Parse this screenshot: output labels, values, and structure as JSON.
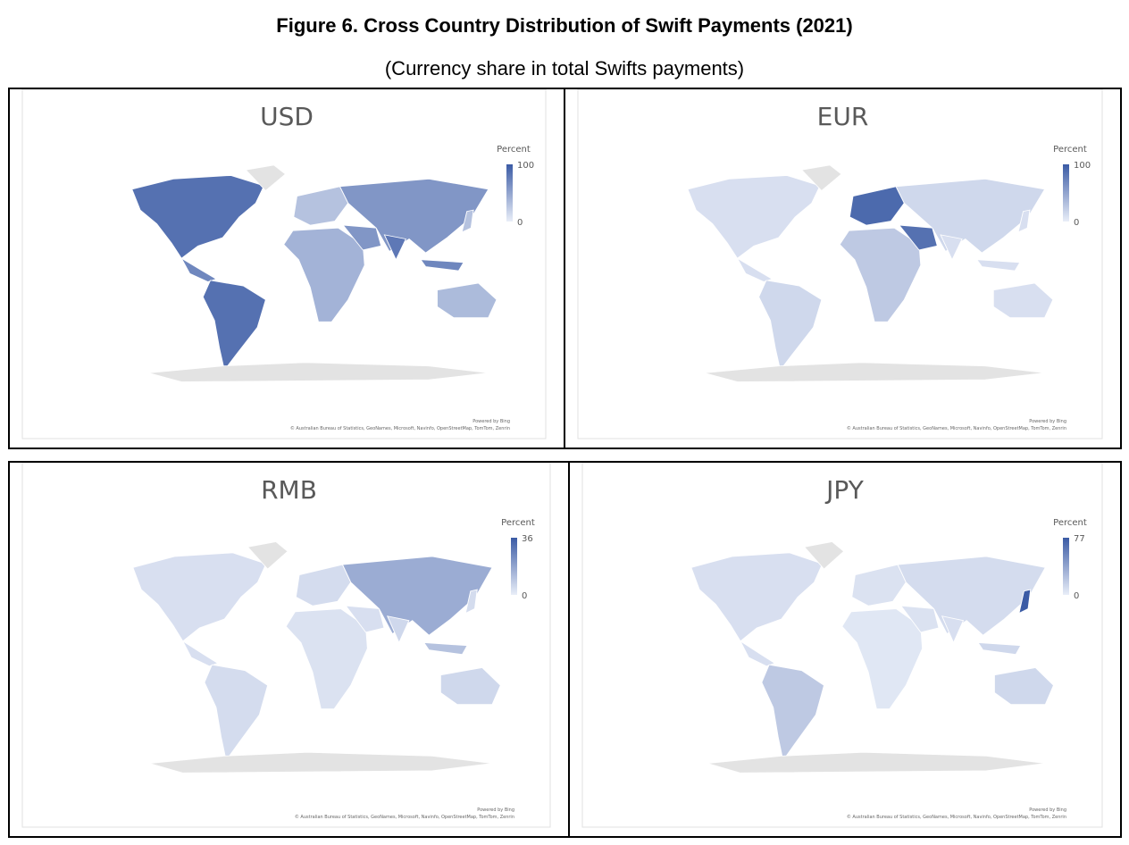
{
  "title": "Figure 6. Cross Country Distribution of Swift Payments (2021)",
  "subtitle": "(Currency share in total Swifts payments)",
  "panels": [
    {
      "title": "USD",
      "legend_title": "Percent",
      "legend_max": 100,
      "legend_min": 0,
      "color_low": "#e9eef8",
      "color_high": "#3b5ba5",
      "credit": "Powered by Bing",
      "attribution": "© Australian Bureau of Statistics, GeoNames, Microsoft, Navinfo, OpenStreetMap, TomTom, Zenrin"
    },
    {
      "title": "EUR",
      "legend_title": "Percent",
      "legend_max": 100,
      "legend_min": 0,
      "color_low": "#e9eef8",
      "color_high": "#3b5ba5",
      "credit": "Powered by Bing",
      "attribution": "© Australian Bureau of Statistics, GeoNames, Microsoft, Navinfo, OpenStreetMap, TomTom, Zenrin"
    },
    {
      "title": "RMB",
      "legend_title": "Percent",
      "legend_max": 36,
      "legend_min": 0,
      "color_low": "#e9eef8",
      "color_high": "#3b5ba5",
      "credit": "Powered by Bing",
      "attribution": "© Australian Bureau of Statistics, GeoNames, Microsoft, Navinfo, OpenStreetMap, TomTom, Zenrin"
    },
    {
      "title": "JPY",
      "legend_title": "Percent",
      "legend_max": 77,
      "legend_min": 0,
      "color_low": "#e9eef8",
      "color_high": "#3b5ba5",
      "credit": "Powered by Bing",
      "attribution": "© Australian Bureau of Statistics, GeoNames, Microsoft, Navinfo, OpenStreetMap, TomTom, Zenrin"
    }
  ]
}
